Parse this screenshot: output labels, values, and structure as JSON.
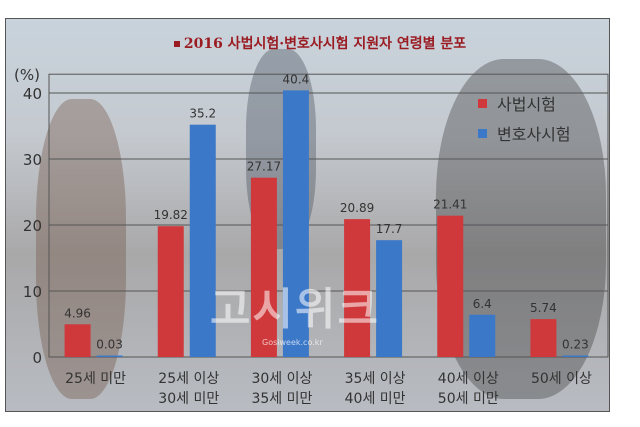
{
  "chart_data": {
    "type": "bar",
    "title": "2016 사법시험·변호사시험 지원자 연령별 분포",
    "ylabel": "(%)",
    "ylim": [
      0,
      43
    ],
    "yticks": [
      0,
      10,
      20,
      30,
      40
    ],
    "categories": [
      [
        "25세 미만"
      ],
      [
        "25세 이상",
        "30세 미만"
      ],
      [
        "30세 이상",
        "35세 미만"
      ],
      [
        "35세 이상",
        "40세 미만"
      ],
      [
        "40세 이상",
        "50세 미만"
      ],
      [
        "50세 이상"
      ]
    ],
    "series": [
      {
        "name": "사법시험",
        "color": "#d0393c",
        "values": [
          4.96,
          19.82,
          27.17,
          20.89,
          21.41,
          5.74
        ],
        "labels": [
          "4.96",
          "19.82",
          "27.17",
          "20.89",
          "21.41",
          "5.74"
        ]
      },
      {
        "name": "변호사시험",
        "color": "#3c78c8",
        "values": [
          0.03,
          35.2,
          40.4,
          17.7,
          6.4,
          0.23
        ],
        "labels": [
          "0.03",
          "35.2",
          "40.4",
          "17.7",
          "6.4",
          "0.23"
        ]
      }
    ],
    "grid": true,
    "legend": "top-right"
  },
  "watermark": {
    "logo": "고시위크",
    "url": "Gosiweek.co.kr"
  }
}
